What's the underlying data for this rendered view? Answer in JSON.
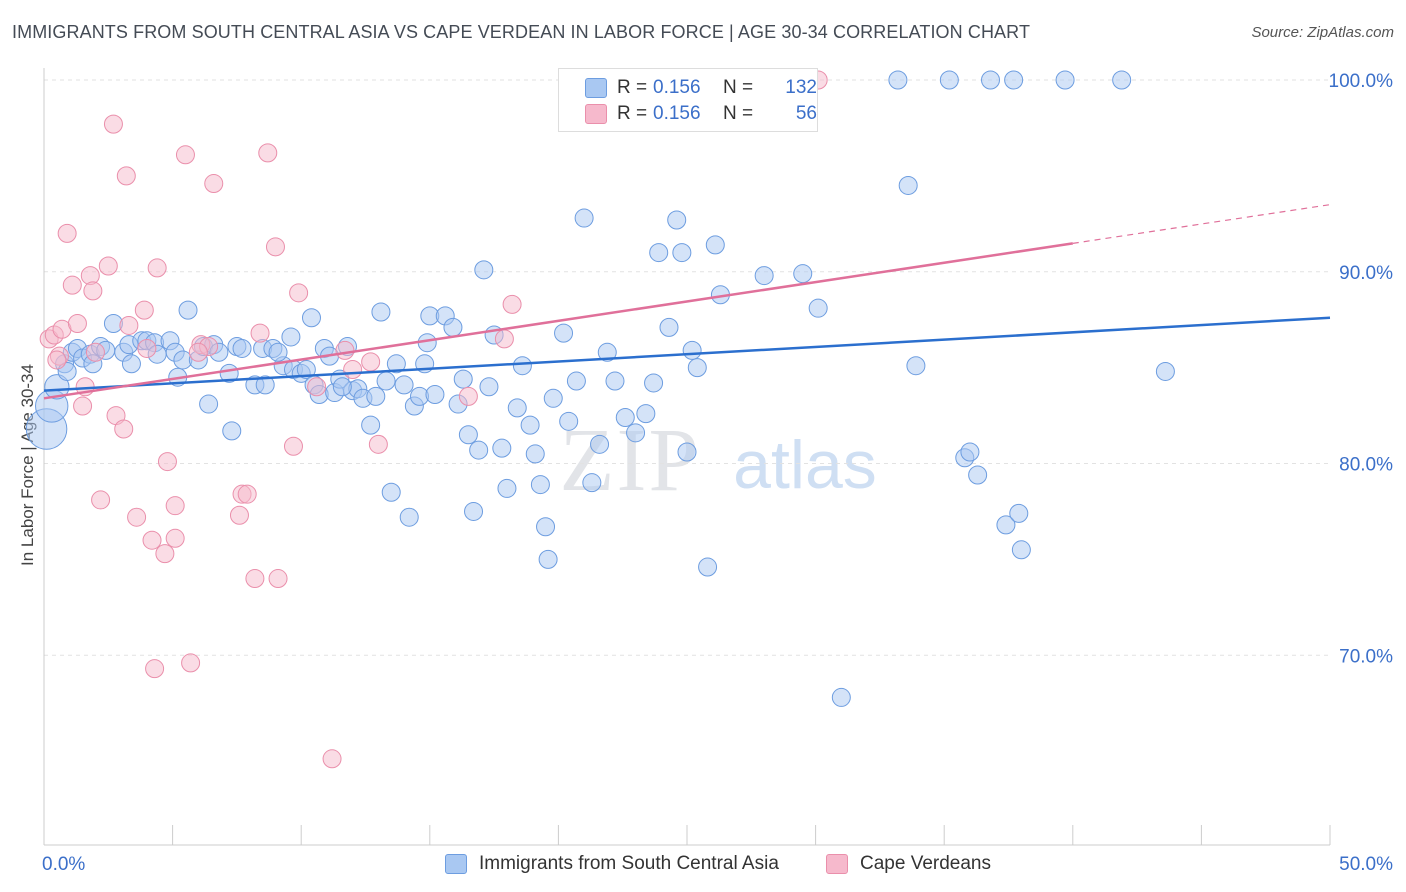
{
  "title": "IMMIGRANTS FROM SOUTH CENTRAL ASIA VS CAPE VERDEAN IN LABOR FORCE | AGE 30-34 CORRELATION CHART",
  "source": "Source: ZipAtlas.com",
  "watermark": {
    "zip": "ZIP",
    "atlas": "atlas"
  },
  "legend_top": {
    "rows": [
      {
        "r_label": "R =",
        "r_value": "0.156",
        "n_label": "N =",
        "n_value": "132"
      },
      {
        "r_label": "R =",
        "r_value": "0.156",
        "n_label": "N =",
        "n_value": "56"
      }
    ]
  },
  "colors": {
    "blue_fill": "#a9c8f2",
    "blue_stroke": "#6d9de0",
    "blue_line": "#2b6fce",
    "pink_fill": "#f6b9cc",
    "pink_stroke": "#ea8fab",
    "pink_line": "#e0709a",
    "tick_label": "#3b6fc9",
    "grid": "#e2e2e2"
  },
  "chart_data": {
    "type": "scatter",
    "title": "IMMIGRANTS FROM SOUTH CENTRAL ASIA VS CAPE VERDEAN IN LABOR FORCE | AGE 30-34 CORRELATION CHART",
    "xlabel": "",
    "ylabel": "In Labor Force | Age 30-34",
    "xlim": [
      0,
      50
    ],
    "ylim": [
      59,
      102
    ],
    "x_tick_labels": [
      {
        "value": 0,
        "label": "0.0%"
      },
      {
        "value": 50,
        "label": "50.0%"
      }
    ],
    "y_tick_labels": [
      {
        "value": 70,
        "label": "70.0%"
      },
      {
        "value": 80,
        "label": "80.0%"
      },
      {
        "value": 90,
        "label": "90.0%"
      },
      {
        "value": 100,
        "label": "100.0%"
      }
    ],
    "x_minor_ticks": [
      0,
      5,
      10,
      15,
      20,
      25,
      30,
      35,
      40,
      45,
      50
    ],
    "grid": true,
    "legend_position": "bottom",
    "series": [
      {
        "name": "Immigrants from South Central Asia",
        "color": "blue",
        "trend": {
          "x": [
            0,
            50
          ],
          "y": [
            83.8,
            87.6
          ],
          "dashed_from": null
        },
        "points": [
          [
            0.1,
            81.8,
            2.0
          ],
          [
            0.3,
            83.0,
            1.6
          ],
          [
            0.5,
            84.0,
            1.2
          ],
          [
            0.8,
            85.2,
            0.8
          ],
          [
            0.9,
            84.8,
            0.8
          ],
          [
            1.1,
            85.8,
            0.8
          ],
          [
            1.3,
            86.0,
            0.8
          ],
          [
            1.5,
            85.5,
            0.8
          ],
          [
            1.8,
            85.7,
            0.8
          ],
          [
            1.9,
            85.2,
            0.8
          ],
          [
            2.2,
            86.1,
            0.8
          ],
          [
            2.4,
            85.9,
            0.8
          ],
          [
            2.7,
            87.3,
            0.8
          ],
          [
            3.1,
            85.8,
            0.8
          ],
          [
            3.3,
            86.2,
            0.8
          ],
          [
            3.4,
            85.2,
            0.8
          ],
          [
            3.8,
            86.4,
            0.8
          ],
          [
            4.0,
            86.4,
            0.8
          ],
          [
            4.3,
            86.3,
            0.8
          ],
          [
            4.4,
            85.7,
            0.8
          ],
          [
            4.9,
            86.4,
            0.8
          ],
          [
            5.1,
            85.8,
            0.8
          ],
          [
            5.2,
            84.5,
            0.8
          ],
          [
            5.4,
            85.4,
            0.8
          ],
          [
            5.6,
            88.0,
            0.8
          ],
          [
            6.0,
            85.4,
            0.8
          ],
          [
            6.2,
            86.1,
            0.8
          ],
          [
            6.4,
            83.1,
            0.8
          ],
          [
            6.6,
            86.2,
            0.8
          ],
          [
            6.8,
            85.8,
            0.8
          ],
          [
            7.2,
            84.7,
            0.8
          ],
          [
            7.3,
            81.7,
            0.8
          ],
          [
            7.5,
            86.1,
            0.8
          ],
          [
            7.7,
            86.0,
            0.8
          ],
          [
            8.2,
            84.1,
            0.8
          ],
          [
            8.5,
            86.0,
            0.8
          ],
          [
            8.6,
            84.1,
            0.8
          ],
          [
            8.9,
            86.0,
            0.8
          ],
          [
            9.3,
            85.1,
            0.8
          ],
          [
            9.6,
            86.6,
            0.8
          ],
          [
            9.7,
            84.9,
            0.8
          ],
          [
            10.0,
            84.7,
            0.8
          ],
          [
            10.2,
            84.9,
            0.8
          ],
          [
            10.4,
            87.6,
            0.8
          ],
          [
            10.5,
            84.1,
            0.8
          ],
          [
            10.7,
            83.6,
            0.8
          ],
          [
            10.9,
            86.0,
            0.8
          ],
          [
            11.1,
            85.6,
            0.8
          ],
          [
            11.3,
            83.7,
            0.8
          ],
          [
            11.5,
            84.4,
            0.8
          ],
          [
            11.8,
            86.1,
            0.8
          ],
          [
            12.0,
            83.8,
            0.8
          ],
          [
            12.2,
            83.9,
            0.8
          ],
          [
            12.4,
            83.4,
            0.8
          ],
          [
            12.7,
            82.0,
            0.8
          ],
          [
            12.9,
            83.5,
            0.8
          ],
          [
            13.1,
            87.9,
            0.8
          ],
          [
            13.3,
            84.3,
            0.8
          ],
          [
            13.5,
            78.5,
            0.8
          ],
          [
            13.7,
            85.2,
            0.8
          ],
          [
            14.0,
            84.1,
            0.8
          ],
          [
            14.2,
            77.2,
            0.8
          ],
          [
            14.4,
            83.0,
            0.8
          ],
          [
            14.6,
            83.5,
            0.8
          ],
          [
            14.8,
            85.2,
            0.8
          ],
          [
            15.0,
            87.7,
            0.8
          ],
          [
            15.2,
            83.6,
            0.8
          ],
          [
            15.6,
            87.7,
            0.8
          ],
          [
            15.9,
            87.1,
            0.8
          ],
          [
            16.1,
            83.1,
            0.8
          ],
          [
            16.3,
            84.4,
            0.8
          ],
          [
            16.5,
            81.5,
            0.8
          ],
          [
            16.7,
            77.5,
            0.8
          ],
          [
            16.9,
            80.7,
            0.8
          ],
          [
            17.1,
            90.1,
            0.8
          ],
          [
            17.3,
            84.0,
            0.8
          ],
          [
            17.5,
            86.7,
            0.8
          ],
          [
            17.8,
            80.8,
            0.8
          ],
          [
            18.0,
            78.7,
            0.8
          ],
          [
            18.4,
            82.9,
            0.8
          ],
          [
            18.6,
            85.1,
            0.8
          ],
          [
            18.9,
            82.0,
            0.8
          ],
          [
            19.1,
            80.5,
            0.8
          ],
          [
            19.3,
            78.9,
            0.8
          ],
          [
            19.5,
            76.7,
            0.8
          ],
          [
            19.6,
            75.0,
            0.8
          ],
          [
            19.8,
            83.4,
            0.8
          ],
          [
            20.2,
            86.8,
            0.8
          ],
          [
            20.4,
            82.2,
            0.8
          ],
          [
            20.7,
            84.3,
            0.8
          ],
          [
            21.0,
            92.8,
            0.8
          ],
          [
            21.3,
            79.0,
            0.8
          ],
          [
            21.6,
            81.0,
            0.8
          ],
          [
            21.9,
            85.8,
            0.8
          ],
          [
            22.2,
            84.3,
            0.8
          ],
          [
            22.6,
            82.4,
            0.8
          ],
          [
            23.0,
            81.6,
            0.8
          ],
          [
            23.4,
            82.6,
            0.8
          ],
          [
            23.7,
            84.2,
            0.8
          ],
          [
            23.9,
            91.0,
            0.8
          ],
          [
            24.3,
            87.1,
            0.8
          ],
          [
            24.6,
            92.7,
            0.8
          ],
          [
            24.8,
            91.0,
            0.8
          ],
          [
            25.0,
            80.6,
            0.8
          ],
          [
            25.2,
            85.9,
            0.8
          ],
          [
            25.8,
            74.6,
            0.8
          ],
          [
            26.1,
            91.4,
            0.8
          ],
          [
            26.3,
            88.8,
            0.8
          ],
          [
            28.0,
            89.8,
            0.8
          ],
          [
            29.5,
            89.9,
            0.8
          ],
          [
            29.6,
            97.8,
            0.8
          ],
          [
            30.1,
            88.1,
            0.8
          ],
          [
            31.0,
            67.8,
            0.8
          ],
          [
            33.2,
            100.0,
            0.8
          ],
          [
            33.6,
            94.5,
            0.8
          ],
          [
            33.9,
            85.1,
            0.8
          ],
          [
            35.2,
            100.0,
            0.8
          ],
          [
            35.8,
            80.3,
            0.8
          ],
          [
            36.0,
            80.6,
            0.8
          ],
          [
            36.3,
            79.4,
            0.8
          ],
          [
            36.8,
            100.0,
            0.8
          ],
          [
            37.4,
            76.8,
            0.8
          ],
          [
            37.7,
            100.0,
            0.8
          ],
          [
            37.9,
            77.4,
            0.8
          ],
          [
            38.0,
            75.5,
            0.8
          ],
          [
            39.7,
            100.0,
            0.8
          ],
          [
            41.9,
            100.0,
            0.8
          ],
          [
            43.6,
            84.8,
            0.8
          ],
          [
            25.4,
            85.0,
            0.8
          ],
          [
            14.9,
            86.3,
            0.8
          ],
          [
            9.1,
            85.8,
            0.8
          ],
          [
            11.6,
            84.0,
            0.8
          ]
        ]
      },
      {
        "name": "Cape Verdeans",
        "color": "pink",
        "trend": {
          "x": [
            0,
            50
          ],
          "y": [
            83.4,
            93.5
          ],
          "dashed_from": 40
        },
        "points": [
          [
            0.2,
            86.5,
            0.8
          ],
          [
            0.4,
            86.7,
            0.8
          ],
          [
            0.6,
            85.6,
            0.8
          ],
          [
            0.7,
            87.0,
            0.8
          ],
          [
            0.9,
            92.0,
            0.8
          ],
          [
            1.1,
            89.3,
            0.8
          ],
          [
            1.3,
            87.3,
            0.8
          ],
          [
            1.5,
            83.0,
            0.8
          ],
          [
            1.8,
            89.8,
            0.8
          ],
          [
            1.9,
            89.0,
            0.8
          ],
          [
            2.2,
            78.1,
            0.8
          ],
          [
            2.5,
            90.3,
            0.8
          ],
          [
            2.8,
            82.5,
            0.8
          ],
          [
            2.7,
            97.7,
            0.8
          ],
          [
            3.1,
            81.8,
            0.8
          ],
          [
            3.2,
            95.0,
            0.8
          ],
          [
            3.3,
            87.2,
            0.8
          ],
          [
            3.6,
            77.2,
            0.8
          ],
          [
            3.9,
            88.0,
            0.8
          ],
          [
            4.0,
            86.0,
            0.8
          ],
          [
            4.2,
            76.0,
            0.8
          ],
          [
            4.3,
            69.3,
            0.8
          ],
          [
            4.4,
            90.2,
            0.8
          ],
          [
            4.7,
            75.3,
            0.8
          ],
          [
            4.8,
            80.1,
            0.8
          ],
          [
            5.1,
            77.8,
            0.8
          ],
          [
            5.1,
            76.1,
            0.8
          ],
          [
            5.5,
            96.1,
            0.8
          ],
          [
            5.7,
            69.6,
            0.8
          ],
          [
            6.1,
            86.2,
            0.8
          ],
          [
            6.4,
            86.1,
            0.8
          ],
          [
            6.6,
            94.6,
            0.8
          ],
          [
            7.6,
            77.3,
            0.8
          ],
          [
            7.7,
            78.4,
            0.8
          ],
          [
            7.9,
            78.4,
            0.8
          ],
          [
            8.2,
            74.0,
            0.8
          ],
          [
            8.4,
            86.8,
            0.8
          ],
          [
            8.7,
            96.2,
            0.8
          ],
          [
            9.0,
            91.3,
            0.8
          ],
          [
            9.1,
            74.0,
            0.8
          ],
          [
            9.7,
            80.9,
            0.8
          ],
          [
            9.9,
            88.9,
            0.8
          ],
          [
            10.6,
            84.0,
            0.8
          ],
          [
            11.2,
            64.6,
            0.8
          ],
          [
            11.7,
            85.9,
            0.8
          ],
          [
            12.0,
            84.9,
            0.8
          ],
          [
            12.7,
            85.3,
            0.8
          ],
          [
            13.0,
            81.0,
            0.8
          ],
          [
            16.5,
            83.5,
            0.8
          ],
          [
            17.9,
            86.5,
            0.8
          ],
          [
            18.2,
            88.3,
            0.8
          ],
          [
            30.1,
            100.0,
            0.8
          ],
          [
            1.6,
            84.0,
            0.8
          ],
          [
            0.5,
            85.4,
            0.8
          ],
          [
            2.0,
            85.8,
            0.8
          ],
          [
            6.0,
            85.8,
            0.8
          ]
        ]
      }
    ]
  },
  "legend_bottom": {
    "items": [
      {
        "label": "Immigrants from South Central Asia"
      },
      {
        "label": "Cape Verdeans"
      }
    ]
  }
}
